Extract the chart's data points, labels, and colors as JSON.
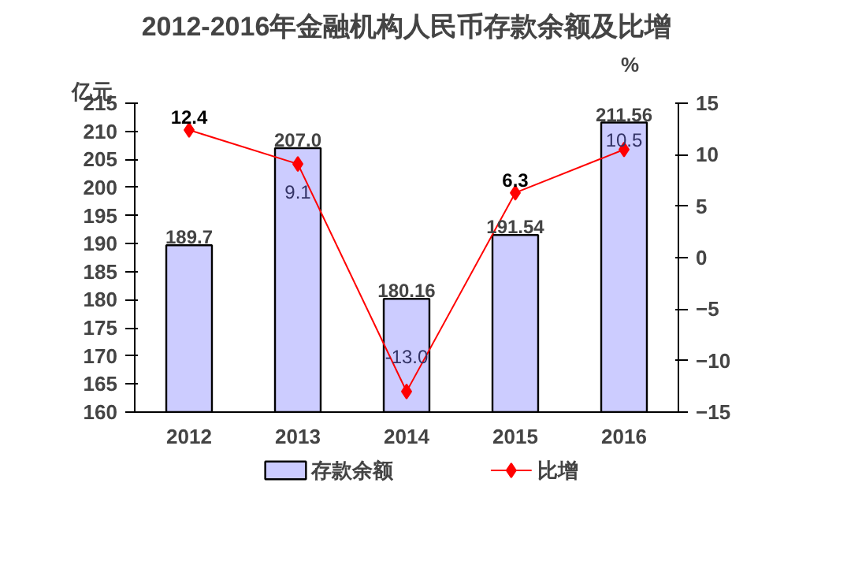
{
  "chart_data": {
    "type": "bar",
    "title": "2012-2016年金融机构人民币存款余额及比增",
    "categories": [
      "2012",
      "2013",
      "2014",
      "2015",
      "2016"
    ],
    "ylabel": "亿元",
    "y2label": "%",
    "ylim": [
      160,
      215
    ],
    "yticks": [
      160,
      165,
      170,
      175,
      180,
      185,
      190,
      195,
      200,
      205,
      210,
      215
    ],
    "y2lim": [
      -15,
      15
    ],
    "y2ticks": [
      -15,
      -10,
      -5,
      0,
      5,
      10,
      15
    ],
    "series": [
      {
        "name": "存款余额",
        "type": "bar",
        "color": "#ccccff",
        "values": [
          189.7,
          207.0,
          180.16,
          191.54,
          211.56
        ],
        "value_labels": [
          "189.7",
          "207.0",
          "180.16",
          "191.54",
          "211.56"
        ]
      },
      {
        "name": "比增",
        "type": "line",
        "axis": "y2",
        "color": "#ff0000",
        "marker": "diamond",
        "values": [
          12.4,
          9.1,
          -13.0,
          6.3,
          10.5
        ],
        "value_labels": [
          "12.4",
          "9.1",
          "-13.0",
          "6.3",
          "10.5"
        ]
      }
    ],
    "grid": false,
    "legend": "bottom"
  }
}
